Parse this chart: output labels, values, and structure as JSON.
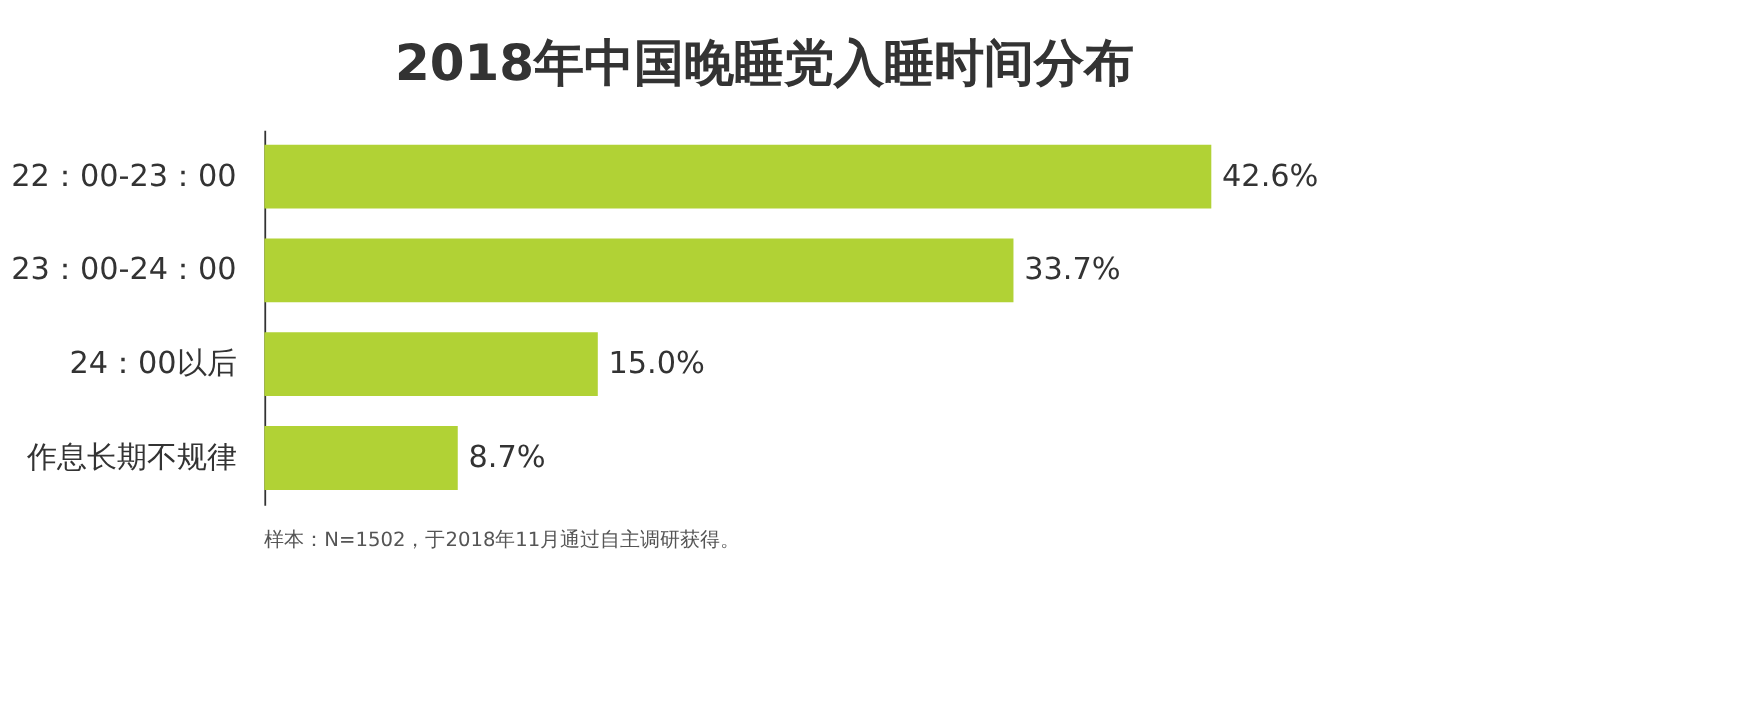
{
  "chart_data": {
    "type": "bar",
    "orientation": "horizontal",
    "title": "2018年中国晚睡党入睡时间分布",
    "categories": [
      "22：00-23：00",
      "23：00-24：00",
      "24：00以后",
      "作息长期不规律"
    ],
    "values": [
      42.6,
      33.7,
      15.0,
      8.7
    ],
    "value_labels": [
      "42.6%",
      "33.7%",
      "15.0%",
      "8.7%"
    ],
    "color": "#b1d235",
    "tick_labels": "y",
    "grid": false,
    "annotations": [
      "样本：N=1502，于2018年11月通过自主调研获得。"
    ]
  }
}
